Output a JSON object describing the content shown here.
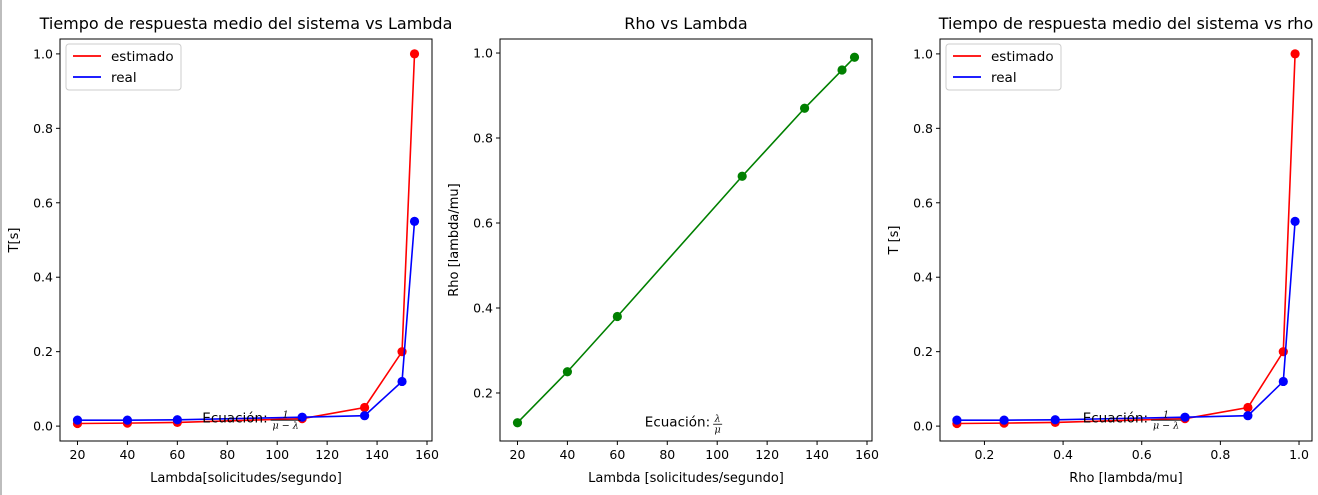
{
  "chart_data": [
    {
      "type": "line",
      "title": "Tiempo de respuesta medio del sistema vs Lambda",
      "xlabel": "Lambda[solicitudes/segundo]",
      "ylabel": "T[s]",
      "xlim": [
        13,
        162
      ],
      "ylim": [
        -0.04,
        1.04
      ],
      "xticks": [
        "20",
        "40",
        "60",
        "80",
        "100",
        "120",
        "140",
        "160"
      ],
      "yticks": [
        "0.0",
        "0.2",
        "0.4",
        "0.6",
        "0.8",
        "1.0"
      ],
      "legend": "top-left",
      "annotation": {
        "label": "Ecuación:",
        "numerator": "1",
        "denominator": "μ − λ",
        "x": 70,
        "y": 0.02
      },
      "series": [
        {
          "name": "estimado",
          "color": "#ff0000",
          "x": [
            20,
            40,
            60,
            110,
            135,
            150,
            155
          ],
          "y": [
            0.007,
            0.008,
            0.01,
            0.02,
            0.05,
            0.2,
            1.0
          ]
        },
        {
          "name": "real",
          "color": "#0000ff",
          "x": [
            20,
            40,
            60,
            110,
            135,
            150,
            155
          ],
          "y": [
            0.016,
            0.016,
            0.017,
            0.024,
            0.028,
            0.12,
            0.55
          ]
        }
      ]
    },
    {
      "type": "line",
      "title": "Rho vs Lambda",
      "xlabel": "Lambda [solicitudes/segundo]",
      "ylabel": "Rho  [lambda/mu]",
      "xlim": [
        13,
        162
      ],
      "ylim": [
        0.087,
        1.033
      ],
      "xticks": [
        "20",
        "40",
        "60",
        "80",
        "100",
        "120",
        "140",
        "160"
      ],
      "yticks": [
        "0.2",
        "0.4",
        "0.6",
        "0.8",
        "1.0"
      ],
      "annotation": {
        "label": "Ecuación:",
        "numerator": "λ",
        "denominator": "μ",
        "x": 71,
        "y": 0.13
      },
      "series": [
        {
          "name": "",
          "color": "#008000",
          "x": [
            20,
            40,
            60,
            110,
            135,
            150,
            155
          ],
          "y": [
            0.13,
            0.25,
            0.38,
            0.71,
            0.87,
            0.96,
            0.99
          ]
        }
      ]
    },
    {
      "type": "line",
      "title": "Tiempo de respuesta medio del sistema vs rho",
      "xlabel": "Rho  [lambda/mu]",
      "ylabel": "T [s]",
      "xlim": [
        0.087,
        1.033
      ],
      "ylim": [
        -0.04,
        1.04
      ],
      "xticks": [
        "0.2",
        "0.4",
        "0.6",
        "0.8",
        "1.0"
      ],
      "yticks": [
        "0.0",
        "0.2",
        "0.4",
        "0.6",
        "0.8",
        "1.0"
      ],
      "legend": "top-left",
      "annotation": {
        "label": "Ecuación:",
        "numerator": "1",
        "denominator": "μ − λ",
        "x": 0.45,
        "y": 0.02
      },
      "series": [
        {
          "name": "estimado",
          "color": "#ff0000",
          "x": [
            0.13,
            0.25,
            0.38,
            0.71,
            0.87,
            0.96,
            0.99
          ],
          "y": [
            0.007,
            0.008,
            0.01,
            0.02,
            0.05,
            0.2,
            1.0
          ]
        },
        {
          "name": "real",
          "color": "#0000ff",
          "x": [
            0.13,
            0.25,
            0.38,
            0.71,
            0.87,
            0.96,
            0.99
          ],
          "y": [
            0.016,
            0.016,
            0.017,
            0.024,
            0.028,
            0.12,
            0.55
          ]
        }
      ]
    }
  ]
}
